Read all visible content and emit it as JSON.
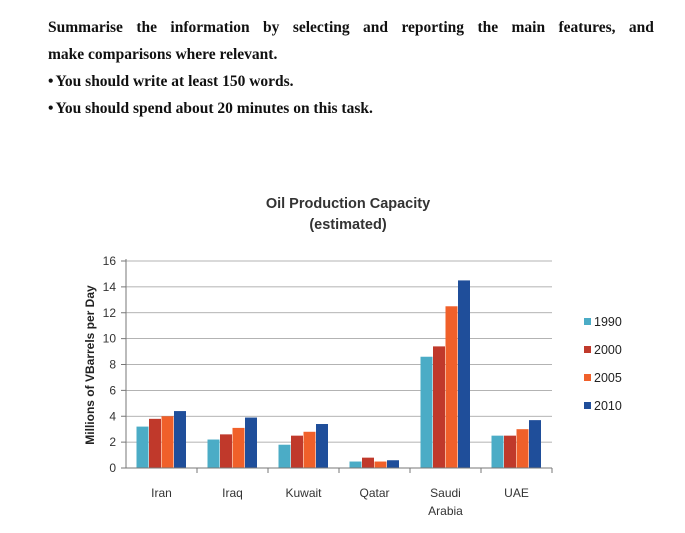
{
  "instructions": {
    "line1_words": [
      "Summarise",
      "the",
      "information",
      "by",
      "selecting",
      "and",
      "reporting",
      "the",
      "main",
      "features,",
      "and"
    ],
    "line2": "make comparisons where relevant.",
    "bullet": "•",
    "bullet1": "You should write at least 150 words.",
    "bullet2": "You should spend about 20 minutes on this task."
  },
  "chart_data": {
    "type": "bar",
    "title": "Oil Production Capacity",
    "subtitle": "(estimated)",
    "ylabel": "Millions of VBarrels per Day",
    "xlabel": "",
    "ylim": [
      0,
      16
    ],
    "yticks": [
      0,
      2,
      4,
      6,
      8,
      10,
      12,
      14,
      16
    ],
    "grid": true,
    "legend_position": "right",
    "categories": [
      [
        "Iran"
      ],
      [
        "Iraq"
      ],
      [
        "Kuwait"
      ],
      [
        "Qatar"
      ],
      [
        "Saudi",
        "Arabia"
      ],
      [
        "UAE"
      ]
    ],
    "series": [
      {
        "name": "1990",
        "color": "#4bacc6",
        "values": [
          3.2,
          2.2,
          1.8,
          0.5,
          8.6,
          2.5
        ]
      },
      {
        "name": "2000",
        "color": "#c0392b",
        "values": [
          3.8,
          2.6,
          2.5,
          0.8,
          9.4,
          2.5
        ]
      },
      {
        "name": "2005",
        "color": "#f0602a",
        "values": [
          4.0,
          3.1,
          2.8,
          0.5,
          12.5,
          3.0
        ]
      },
      {
        "name": "2010",
        "color": "#1f4e9a",
        "values": [
          4.4,
          3.9,
          3.4,
          0.6,
          14.5,
          3.7
        ]
      }
    ]
  }
}
